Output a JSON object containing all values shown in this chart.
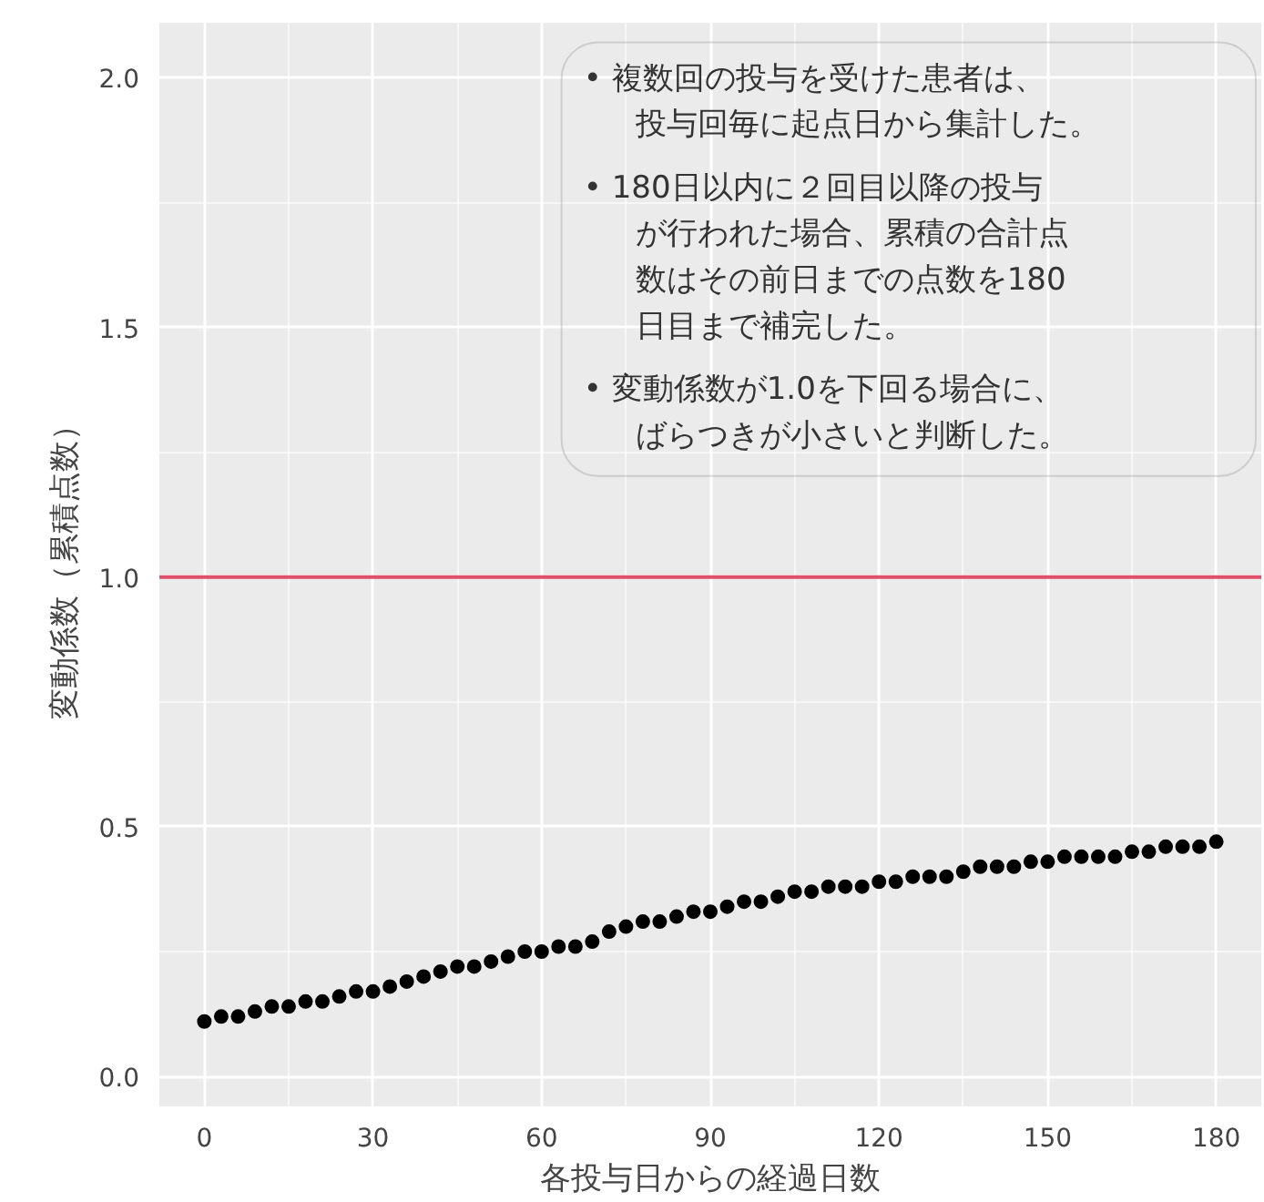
{
  "chart_data": {
    "type": "scatter",
    "xlabel": "各投与日からの経過日数",
    "ylabel": "変動係数（累積点数）",
    "x": [
      0,
      3,
      6,
      9,
      12,
      15,
      18,
      21,
      24,
      27,
      30,
      33,
      36,
      39,
      42,
      45,
      48,
      51,
      54,
      57,
      60,
      63,
      66,
      69,
      72,
      75,
      78,
      81,
      84,
      87,
      90,
      93,
      96,
      99,
      102,
      105,
      108,
      111,
      114,
      117,
      120,
      123,
      126,
      129,
      132,
      135,
      138,
      141,
      144,
      147,
      150,
      153,
      156,
      159,
      162,
      165,
      168,
      171,
      174,
      177,
      180
    ],
    "series": [
      {
        "color": "#000000",
        "values": [
          0.11,
          0.12,
          0.12,
          0.13,
          0.14,
          0.14,
          0.15,
          0.15,
          0.16,
          0.17,
          0.17,
          0.18,
          0.19,
          0.2,
          0.21,
          0.22,
          0.22,
          0.23,
          0.24,
          0.25,
          0.25,
          0.26,
          0.26,
          0.27,
          0.29,
          0.3,
          0.31,
          0.31,
          0.32,
          0.33,
          0.33,
          0.34,
          0.35,
          0.35,
          0.36,
          0.37,
          0.37,
          0.38,
          0.38,
          0.38,
          0.39,
          0.39,
          0.4,
          0.4,
          0.4,
          0.41,
          0.42,
          0.42,
          0.42,
          0.43,
          0.43,
          0.44,
          0.44,
          0.44,
          0.44,
          0.45,
          0.45,
          0.46,
          0.46,
          0.46,
          0.47
        ]
      }
    ],
    "xlim": [
      -8,
      188
    ],
    "ylim": [
      -0.06,
      2.11
    ],
    "xticks": [
      0,
      30,
      60,
      90,
      120,
      150,
      180
    ],
    "yticks": [
      {
        "value": 0,
        "label": "0.0"
      },
      {
        "value": 0.5,
        "label": "0.5"
      },
      {
        "value": 1,
        "label": "1.0"
      },
      {
        "value": 1.5,
        "label": "1.5"
      },
      {
        "value": 2,
        "label": "2.0"
      }
    ],
    "ref_lines": [
      {
        "axis": "y",
        "value": 1.0,
        "color": "#e0506a"
      }
    ],
    "annotations": [
      "• 複数回の投与を受けた患者は、投与回毎に起点日から集計した。",
      "• 180日以内に２回目以降の投与が行われた場合、累積の合計点数はその前日までの点数を180日目まで補完した。",
      "• 変動係数が1.0を下回る場合に、ばらつきが小さいと判断した。"
    ],
    "grid": true,
    "marker": "circle"
  }
}
